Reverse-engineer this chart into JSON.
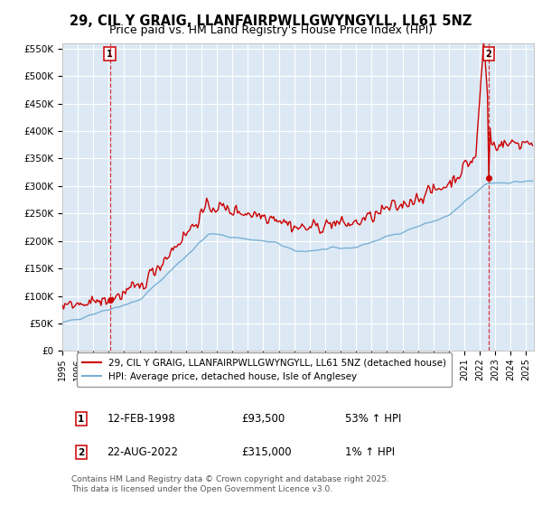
{
  "title": "29, CIL Y GRAIG, LLANFAIRPWLLGWYNGYLL, LL61 5NZ",
  "subtitle": "Price paid vs. HM Land Registry's House Price Index (HPI)",
  "title_fontsize": 10.5,
  "subtitle_fontsize": 9,
  "ylim": [
    0,
    560000
  ],
  "yticks": [
    0,
    50000,
    100000,
    150000,
    200000,
    250000,
    300000,
    350000,
    400000,
    450000,
    500000,
    550000
  ],
  "ytick_labels": [
    "£0",
    "£50K",
    "£100K",
    "£150K",
    "£200K",
    "£250K",
    "£300K",
    "£350K",
    "£400K",
    "£450K",
    "£500K",
    "£550K"
  ],
  "red_color": "#cc0000",
  "blue_color": "#7ab0d4",
  "marker_color": "#cc0000",
  "bg_color": "#dce9f5",
  "grid_color": "#ffffff",
  "vline_color": "#cc0000",
  "legend_label_red": "29, CIL Y GRAIG, LLANFAIRPWLLGWYNGYLL, LL61 5NZ (detached house)",
  "legend_label_blue": "HPI: Average price, detached house, Isle of Anglesey",
  "annotation1_label": "1",
  "annotation1_date": "12-FEB-1998",
  "annotation1_price": "£93,500",
  "annotation1_hpi": "53% ↑ HPI",
  "annotation2_label": "2",
  "annotation2_date": "22-AUG-2022",
  "annotation2_price": "£315,000",
  "annotation2_hpi": "1% ↑ HPI",
  "footer": "Contains HM Land Registry data © Crown copyright and database right 2025.\nThis data is licensed under the Open Government Licence v3.0.",
  "xstart_year": 1995.0,
  "xend_year": 2025.5,
  "sale1_year": 1998.083,
  "sale1_price": 93500,
  "sale2_year": 2022.583,
  "sale2_price": 315000
}
